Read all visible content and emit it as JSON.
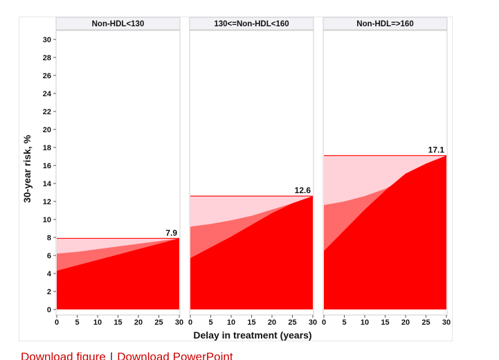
{
  "chart_data": [
    {
      "type": "area",
      "title": "Non-HDL<130",
      "xlabel": "Delay in treatment (years)",
      "ylabel": "30-year risk, %",
      "x": [
        0,
        5,
        10,
        15,
        20,
        25,
        30
      ],
      "xlim": [
        0,
        30
      ],
      "ylim": [
        0,
        31
      ],
      "series": [
        {
          "values": [
            7.9,
            7.9,
            7.9,
            7.9,
            7.9,
            7.9,
            7.9
          ]
        },
        {
          "values": [
            6.2,
            6.4,
            6.7,
            7.0,
            7.3,
            7.6,
            7.9
          ]
        },
        {
          "values": [
            4.3,
            4.9,
            5.5,
            6.1,
            6.7,
            7.3,
            7.9
          ]
        }
      ],
      "end_label": "7.9"
    },
    {
      "type": "area",
      "title": "130<=Non-HDL<160",
      "xlabel": "Delay in treatment (years)",
      "ylabel": "30-year risk, %",
      "x": [
        0,
        5,
        10,
        15,
        20,
        25,
        30
      ],
      "xlim": [
        0,
        30
      ],
      "ylim": [
        0,
        31
      ],
      "series": [
        {
          "values": [
            12.6,
            12.6,
            12.6,
            12.6,
            12.6,
            12.6,
            12.6
          ]
        },
        {
          "values": [
            9.2,
            9.5,
            9.9,
            10.4,
            11.1,
            11.8,
            12.6
          ]
        },
        {
          "values": [
            5.7,
            6.9,
            8.1,
            9.4,
            10.7,
            11.8,
            12.6
          ]
        }
      ],
      "end_label": "12.6"
    },
    {
      "type": "area",
      "title": "Non-HDL=>160",
      "xlabel": "Delay in treatment (years)",
      "ylabel": "30-year risk, %",
      "x": [
        0,
        5,
        10,
        15,
        20,
        25,
        30
      ],
      "xlim": [
        0,
        30
      ],
      "ylim": [
        0,
        31
      ],
      "series": [
        {
          "values": [
            17.1,
            17.1,
            17.1,
            17.1,
            17.1,
            17.1,
            17.1
          ]
        },
        {
          "values": [
            11.6,
            12.0,
            12.6,
            13.4,
            14.6,
            15.9,
            17.1
          ]
        },
        {
          "values": [
            6.5,
            8.8,
            11.1,
            13.2,
            15.1,
            16.2,
            17.1
          ]
        }
      ],
      "end_label": "17.1"
    }
  ],
  "yticks": [
    "0",
    "2",
    "4",
    "6",
    "8",
    "10",
    "12",
    "14",
    "16",
    "18",
    "20",
    "22",
    "24",
    "26",
    "28",
    "30"
  ],
  "xticks": [
    "0",
    "5",
    "10",
    "15",
    "20",
    "25",
    "30"
  ],
  "xlabel": "Delay in treatment (years)",
  "ylabel": "30-year risk, %",
  "colors": {
    "band_light": "#ffd1d9",
    "band_mid": "#ff6a6a",
    "band_dark": "#ff0000",
    "line": "#ff0000",
    "link": "#cc0000"
  },
  "links": {
    "download_figure": "Download figure",
    "separator": "|",
    "download_ppt": "Download PowerPoint"
  }
}
